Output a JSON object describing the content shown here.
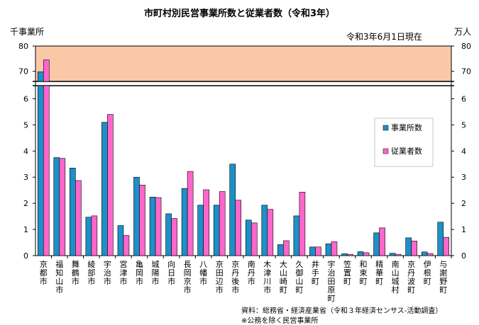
{
  "title": "市町村別民営事業所数と従業者数（令和3年）",
  "y_left_label": "千事業所",
  "y_right_label": "万人",
  "date_note": "令和3年6月1日現在",
  "source": "資料：総務省・経済産業省（令和３年経済センサス-活動調査）",
  "note": "※公務を除く民営事業所",
  "colors": {
    "establishments": "#1e90c8",
    "employees": "#ff66cc",
    "upper_band": "#f9c9a7",
    "plot_bg": "#ffffff"
  },
  "chart_data": {
    "type": "bar",
    "categories": [
      "京都市",
      "福知山市",
      "舞鶴市",
      "綾部市",
      "宇治市",
      "宮津市",
      "亀岡市",
      "城陽市",
      "向日市",
      "長岡京市",
      "八幡市",
      "京田辺市",
      "京丹後市",
      "南丹市",
      "木津川市",
      "大山崎町",
      "久御山町",
      "井手町",
      "宇治田原町",
      "笠置町",
      "和束町",
      "精華町",
      "南山城村",
      "京丹波町",
      "伊根町",
      "与謝野町"
    ],
    "series": [
      {
        "name": "事業所数",
        "values": [
          69.8,
          3.75,
          3.35,
          1.47,
          5.1,
          1.15,
          3.0,
          2.24,
          1.6,
          2.57,
          1.93,
          1.93,
          3.5,
          1.36,
          1.93,
          0.42,
          1.52,
          0.33,
          0.45,
          0.07,
          0.15,
          0.87,
          0.09,
          0.68,
          0.14,
          1.28
        ]
      },
      {
        "name": "従業者数",
        "values": [
          74.5,
          3.72,
          2.87,
          1.52,
          5.4,
          0.77,
          2.7,
          2.22,
          1.42,
          3.22,
          2.52,
          2.45,
          2.12,
          1.25,
          1.77,
          0.57,
          2.43,
          0.33,
          0.53,
          0.05,
          0.11,
          1.06,
          0.05,
          0.56,
          0.08,
          0.7
        ]
      }
    ],
    "y_axis_broken": true,
    "y_lower_range": [
      0,
      6.5
    ],
    "y_lower_ticks": [
      "0",
      "1",
      "2",
      "3",
      "4",
      "5",
      "6"
    ],
    "y_upper_range": [
      66,
      80
    ],
    "y_upper_ticks": [
      "70",
      "80"
    ],
    "legend_position": "right",
    "grid": false
  }
}
